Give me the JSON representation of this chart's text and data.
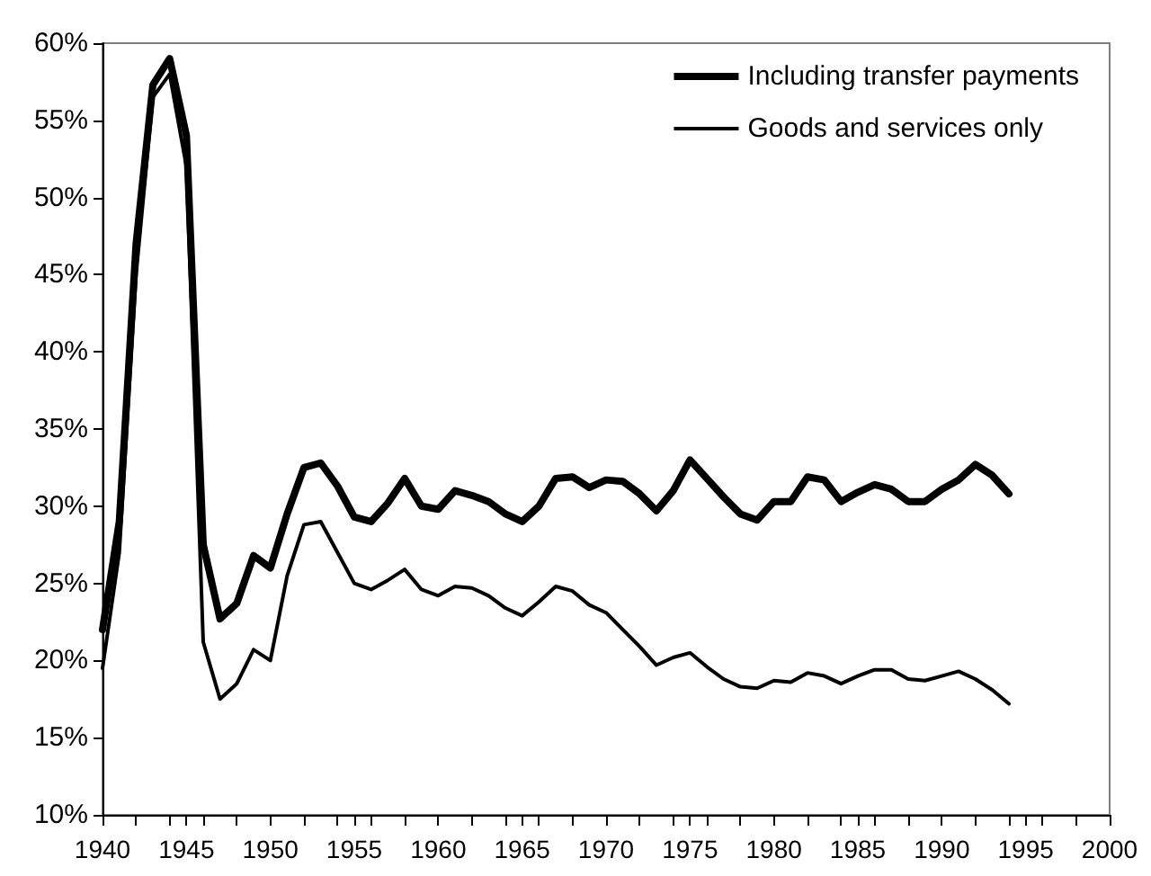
{
  "chart_data": {
    "type": "line",
    "x": [
      1940,
      1941,
      1942,
      1943,
      1944,
      1945,
      1946,
      1947,
      1948,
      1949,
      1950,
      1951,
      1952,
      1953,
      1954,
      1955,
      1956,
      1957,
      1958,
      1959,
      1960,
      1961,
      1962,
      1963,
      1964,
      1965,
      1966,
      1967,
      1968,
      1969,
      1970,
      1971,
      1972,
      1973,
      1974,
      1975,
      1976,
      1977,
      1978,
      1979,
      1980,
      1981,
      1982,
      1983,
      1984,
      1985,
      1986,
      1987,
      1988,
      1989,
      1990,
      1991,
      1992,
      1993,
      1994
    ],
    "series": [
      {
        "name": "Including transfer payments",
        "color": "#000000",
        "values": [
          22,
          29,
          47,
          57.3,
          59,
          54,
          27.5,
          22.7,
          23.7,
          26.8,
          26,
          29.5,
          32.5,
          32.8,
          31.3,
          29.3,
          29,
          30.2,
          31.8,
          30,
          29.8,
          31,
          30.7,
          30.3,
          29.5,
          29,
          30,
          31.8,
          31.9,
          31.2,
          31.7,
          31.6,
          30.8,
          29.7,
          31,
          33,
          31.8,
          30.6,
          29.5,
          29.1,
          30.3,
          30.3,
          31.9,
          31.7,
          30.3,
          30.9,
          31.4,
          31.1,
          30.3,
          30.3,
          31.1,
          31.7,
          32.7,
          32,
          30.8
        ]
      },
      {
        "name": "Goods and services only",
        "color": "#000000",
        "values": [
          19.5,
          27,
          45,
          56.5,
          58,
          52,
          21.2,
          17.5,
          18.5,
          20.7,
          20,
          25.5,
          28.8,
          29,
          27,
          25,
          24.6,
          25.2,
          25.9,
          24.6,
          24.2,
          24.8,
          24.7,
          24.2,
          23.4,
          22.9,
          23.8,
          24.8,
          24.5,
          23.6,
          23.1,
          22,
          20.9,
          19.7,
          20.2,
          20.5,
          19.6,
          18.8,
          18.3,
          18.2,
          18.7,
          18.6,
          19.2,
          19,
          18.5,
          19,
          19.4,
          19.4,
          18.8,
          18.7,
          19,
          19.3,
          18.8,
          18.1,
          17.2
        ]
      }
    ],
    "xlim": [
      1940,
      2000
    ],
    "xticks": [
      1940,
      1945,
      1950,
      1955,
      1960,
      1965,
      1970,
      1975,
      1980,
      1985,
      1990,
      1995,
      2000
    ],
    "ylim": [
      10,
      60
    ],
    "yticks": [
      {
        "value": 10,
        "label": "10%"
      },
      {
        "value": 15,
        "label": "15%"
      },
      {
        "value": 20,
        "label": "20%"
      },
      {
        "value": 25,
        "label": "25%"
      },
      {
        "value": 30,
        "label": "30%"
      },
      {
        "value": 35,
        "label": "35%"
      },
      {
        "value": 40,
        "label": "40%"
      },
      {
        "value": 45,
        "label": "45%"
      },
      {
        "value": 50,
        "label": "50%"
      },
      {
        "value": 55,
        "label": "55%"
      },
      {
        "value": 60,
        "label": "60%"
      }
    ],
    "grid": false,
    "legend": "top right",
    "marker": "none",
    "line_style": "solid"
  }
}
